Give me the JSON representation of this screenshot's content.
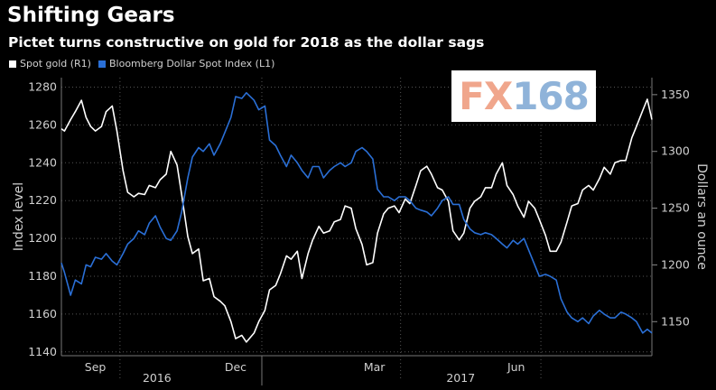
{
  "title": "Shifting Gears",
  "subtitle": "Pictet turns constructive on gold for 2018 as the dollar sags",
  "watermark": {
    "part1": "FX",
    "part2": "168"
  },
  "colors": {
    "gold": "#ffffff",
    "dollar": "#2a6fd6",
    "grid": "#555555",
    "axis_text": "#d0d0d0"
  },
  "chart_data": {
    "type": "line",
    "title": "Shifting Gears",
    "subtitle": "Pictet turns constructive on gold for 2018 as the dollar sags",
    "ylabel_left": "Index level",
    "ylabel_right": "Dollars an ounce",
    "ylim_left": [
      1138,
      1285
    ],
    "ylim_right": [
      1120,
      1365
    ],
    "yticks_left": [
      "1140",
      "1160",
      "1180",
      "1200",
      "1220",
      "1240",
      "1260",
      "1280"
    ],
    "yticks_right": [
      "1150",
      "1200",
      "1250",
      "1300",
      "1350"
    ],
    "x_month_labels": [
      "Sep",
      "Dec",
      "Mar",
      "Jun"
    ],
    "x_year_labels": [
      "2016",
      "2017"
    ],
    "x_range": [
      "2016-08-24",
      "2017-09-11"
    ],
    "grid": true,
    "legend_position": "top-left",
    "series": [
      {
        "name": "Spot gold (R1)",
        "axis": "right",
        "dates": [
          "2016-08-24",
          "2016-08-26",
          "2016-08-30",
          "2016-09-02",
          "2016-09-06",
          "2016-09-09",
          "2016-09-12",
          "2016-09-15",
          "2016-09-19",
          "2016-09-22",
          "2016-09-26",
          "2016-09-29",
          "2016-10-03",
          "2016-10-06",
          "2016-10-10",
          "2016-10-13",
          "2016-10-17",
          "2016-10-20",
          "2016-10-24",
          "2016-10-27",
          "2016-10-31",
          "2016-11-03",
          "2016-11-07",
          "2016-11-10",
          "2016-11-14",
          "2016-11-17",
          "2016-11-21",
          "2016-11-24",
          "2016-11-28",
          "2016-12-01",
          "2016-12-05",
          "2016-12-08",
          "2016-12-12",
          "2016-12-15",
          "2016-12-19",
          "2016-12-22",
          "2016-12-27",
          "2016-12-30",
          "2017-01-03",
          "2017-01-06",
          "2017-01-10",
          "2017-01-13",
          "2017-01-17",
          "2017-01-20",
          "2017-01-24",
          "2017-01-27",
          "2017-01-31",
          "2017-02-03",
          "2017-02-07",
          "2017-02-10",
          "2017-02-14",
          "2017-02-17",
          "2017-02-21",
          "2017-02-24",
          "2017-02-28",
          "2017-03-03",
          "2017-03-07",
          "2017-03-10",
          "2017-03-14",
          "2017-03-17",
          "2017-03-21",
          "2017-03-24",
          "2017-03-28",
          "2017-03-31",
          "2017-04-04",
          "2017-04-07",
          "2017-04-11",
          "2017-04-14",
          "2017-04-18",
          "2017-04-21",
          "2017-04-25",
          "2017-04-28",
          "2017-05-02",
          "2017-05-05",
          "2017-05-09",
          "2017-05-12",
          "2017-05-16",
          "2017-05-19",
          "2017-05-23",
          "2017-05-26",
          "2017-05-30",
          "2017-06-02",
          "2017-06-06",
          "2017-06-09",
          "2017-06-13",
          "2017-06-16",
          "2017-06-20",
          "2017-06-23",
          "2017-06-27",
          "2017-06-30",
          "2017-07-04",
          "2017-07-07",
          "2017-07-11",
          "2017-07-14",
          "2017-07-18",
          "2017-07-21",
          "2017-07-25",
          "2017-07-28",
          "2017-08-01",
          "2017-08-04",
          "2017-08-08",
          "2017-08-11",
          "2017-08-15",
          "2017-08-18",
          "2017-08-22",
          "2017-08-25",
          "2017-08-29",
          "2017-09-01",
          "2017-09-05",
          "2017-09-08",
          "2017-09-11"
        ],
        "values": [
          1320,
          1318,
          1328,
          1335,
          1345,
          1330,
          1322,
          1318,
          1322,
          1335,
          1340,
          1318,
          1283,
          1264,
          1260,
          1263,
          1262,
          1270,
          1268,
          1275,
          1280,
          1300,
          1288,
          1262,
          1225,
          1210,
          1214,
          1186,
          1188,
          1172,
          1168,
          1164,
          1150,
          1135,
          1138,
          1132,
          1140,
          1150,
          1160,
          1178,
          1182,
          1192,
          1208,
          1205,
          1212,
          1188,
          1210,
          1222,
          1234,
          1228,
          1230,
          1238,
          1240,
          1252,
          1250,
          1232,
          1218,
          1200,
          1202,
          1228,
          1245,
          1250,
          1252,
          1246,
          1258,
          1254,
          1270,
          1283,
          1287,
          1280,
          1268,
          1266,
          1256,
          1230,
          1222,
          1228,
          1250,
          1256,
          1260,
          1268,
          1268,
          1280,
          1290,
          1270,
          1262,
          1252,
          1242,
          1256,
          1250,
          1240,
          1226,
          1212,
          1212,
          1220,
          1238,
          1252,
          1254,
          1266,
          1270,
          1266,
          1276,
          1286,
          1280,
          1290,
          1292,
          1292,
          1312,
          1322,
          1336,
          1346,
          1328
        ]
      },
      {
        "name": "Bloomberg Dollar Spot Index (L1)",
        "axis": "left",
        "dates": [
          "2016-08-24",
          "2016-08-26",
          "2016-08-30",
          "2016-09-02",
          "2016-09-06",
          "2016-09-09",
          "2016-09-12",
          "2016-09-15",
          "2016-09-19",
          "2016-09-22",
          "2016-09-26",
          "2016-09-29",
          "2016-10-03",
          "2016-10-06",
          "2016-10-10",
          "2016-10-13",
          "2016-10-17",
          "2016-10-20",
          "2016-10-24",
          "2016-10-27",
          "2016-10-31",
          "2016-11-03",
          "2016-11-07",
          "2016-11-10",
          "2016-11-14",
          "2016-11-17",
          "2016-11-21",
          "2016-11-24",
          "2016-11-28",
          "2016-12-01",
          "2016-12-05",
          "2016-12-08",
          "2016-12-12",
          "2016-12-15",
          "2016-12-19",
          "2016-12-22",
          "2016-12-27",
          "2016-12-30",
          "2017-01-03",
          "2017-01-06",
          "2017-01-10",
          "2017-01-13",
          "2017-01-17",
          "2017-01-20",
          "2017-01-24",
          "2017-01-27",
          "2017-01-31",
          "2017-02-03",
          "2017-02-07",
          "2017-02-10",
          "2017-02-14",
          "2017-02-17",
          "2017-02-21",
          "2017-02-24",
          "2017-02-28",
          "2017-03-03",
          "2017-03-07",
          "2017-03-10",
          "2017-03-14",
          "2017-03-17",
          "2017-03-21",
          "2017-03-24",
          "2017-03-28",
          "2017-03-31",
          "2017-04-04",
          "2017-04-07",
          "2017-04-11",
          "2017-04-14",
          "2017-04-18",
          "2017-04-21",
          "2017-04-25",
          "2017-04-28",
          "2017-05-02",
          "2017-05-05",
          "2017-05-09",
          "2017-05-12",
          "2017-05-16",
          "2017-05-19",
          "2017-05-23",
          "2017-05-26",
          "2017-05-30",
          "2017-06-02",
          "2017-06-06",
          "2017-06-09",
          "2017-06-13",
          "2017-06-16",
          "2017-06-20",
          "2017-06-23",
          "2017-06-27",
          "2017-06-30",
          "2017-07-04",
          "2017-07-07",
          "2017-07-11",
          "2017-07-14",
          "2017-07-18",
          "2017-07-21",
          "2017-07-25",
          "2017-07-28",
          "2017-08-01",
          "2017-08-04",
          "2017-08-08",
          "2017-08-11",
          "2017-08-15",
          "2017-08-18",
          "2017-08-22",
          "2017-08-25",
          "2017-08-29",
          "2017-09-01",
          "2017-09-05",
          "2017-09-08",
          "2017-09-11"
        ],
        "values": [
          1187,
          1182,
          1170,
          1178,
          1176,
          1186,
          1185,
          1190,
          1189,
          1192,
          1188,
          1186,
          1192,
          1197,
          1200,
          1204,
          1202,
          1208,
          1212,
          1206,
          1200,
          1199,
          1204,
          1214,
          1232,
          1243,
          1248,
          1246,
          1250,
          1244,
          1250,
          1256,
          1264,
          1275,
          1274,
          1277,
          1273,
          1268,
          1270,
          1252,
          1249,
          1244,
          1238,
          1244,
          1240,
          1236,
          1232,
          1238,
          1238,
          1232,
          1236,
          1238,
          1240,
          1238,
          1240,
          1246,
          1248,
          1246,
          1242,
          1226,
          1222,
          1222,
          1220,
          1222,
          1222,
          1220,
          1216,
          1215,
          1214,
          1212,
          1216,
          1220,
          1222,
          1218,
          1218,
          1210,
          1205,
          1203,
          1202,
          1203,
          1202,
          1200,
          1197,
          1195,
          1199,
          1197,
          1200,
          1194,
          1186,
          1180,
          1181,
          1180,
          1178,
          1168,
          1161,
          1158,
          1156,
          1158,
          1155,
          1159,
          1162,
          1160,
          1158,
          1158,
          1161,
          1160,
          1158,
          1156,
          1150,
          1152,
          1150
        ]
      }
    ]
  }
}
